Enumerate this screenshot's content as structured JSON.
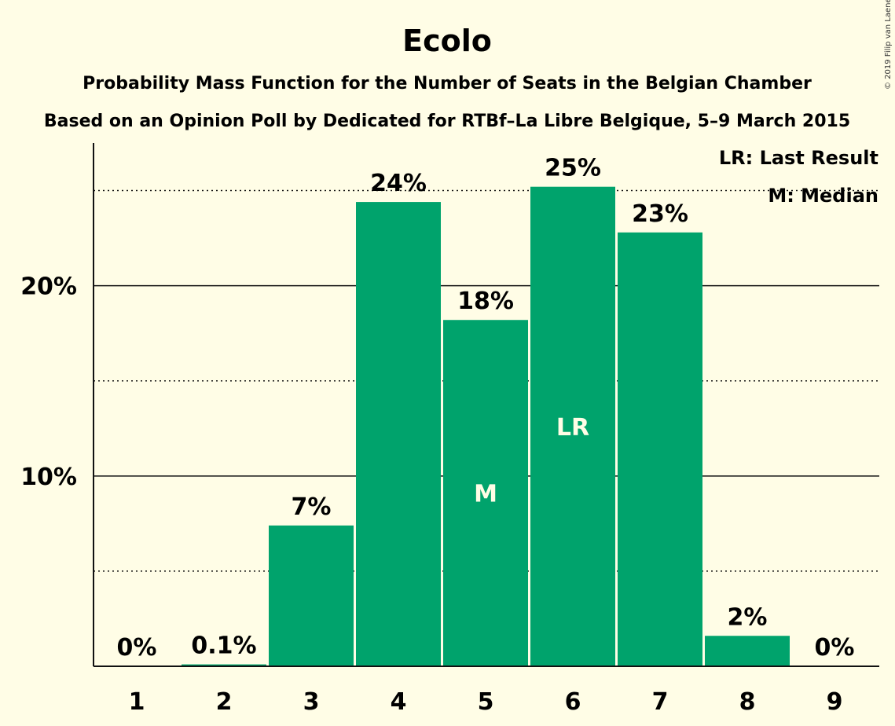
{
  "colors": {
    "background": "#FFFDE6",
    "bar": "#00A36C",
    "text": "#111111"
  },
  "copyright": "© 2019 Filip van Laenen",
  "chart_data": {
    "type": "bar",
    "title": "Ecolo",
    "subtitle1": "Probability Mass Function for the Number of Seats in the Belgian Chamber",
    "subtitle2": "Based on an Opinion Poll by Dedicated for RTBf–La Libre Belgique, 5–9 March 2015",
    "categories": [
      "1",
      "2",
      "3",
      "4",
      "5",
      "6",
      "7",
      "8",
      "9"
    ],
    "values": [
      0,
      0.1,
      7.4,
      24.4,
      18.2,
      25.2,
      22.8,
      1.6,
      0
    ],
    "value_labels": [
      "0%",
      "0.1%",
      "7%",
      "24%",
      "18%",
      "25%",
      "23%",
      "2%",
      "0%"
    ],
    "inner_labels": [
      "",
      "",
      "",
      "",
      "M",
      "LR",
      "",
      "",
      ""
    ],
    "ylim": [
      0,
      27.5
    ],
    "yticks": [
      10,
      20
    ],
    "ytick_labels": [
      "10%",
      "20%"
    ],
    "minor_gridlines": [
      5,
      15,
      25
    ],
    "legend": [
      "LR: Last Result",
      "M: Median"
    ],
    "legend_position": "top-right"
  }
}
